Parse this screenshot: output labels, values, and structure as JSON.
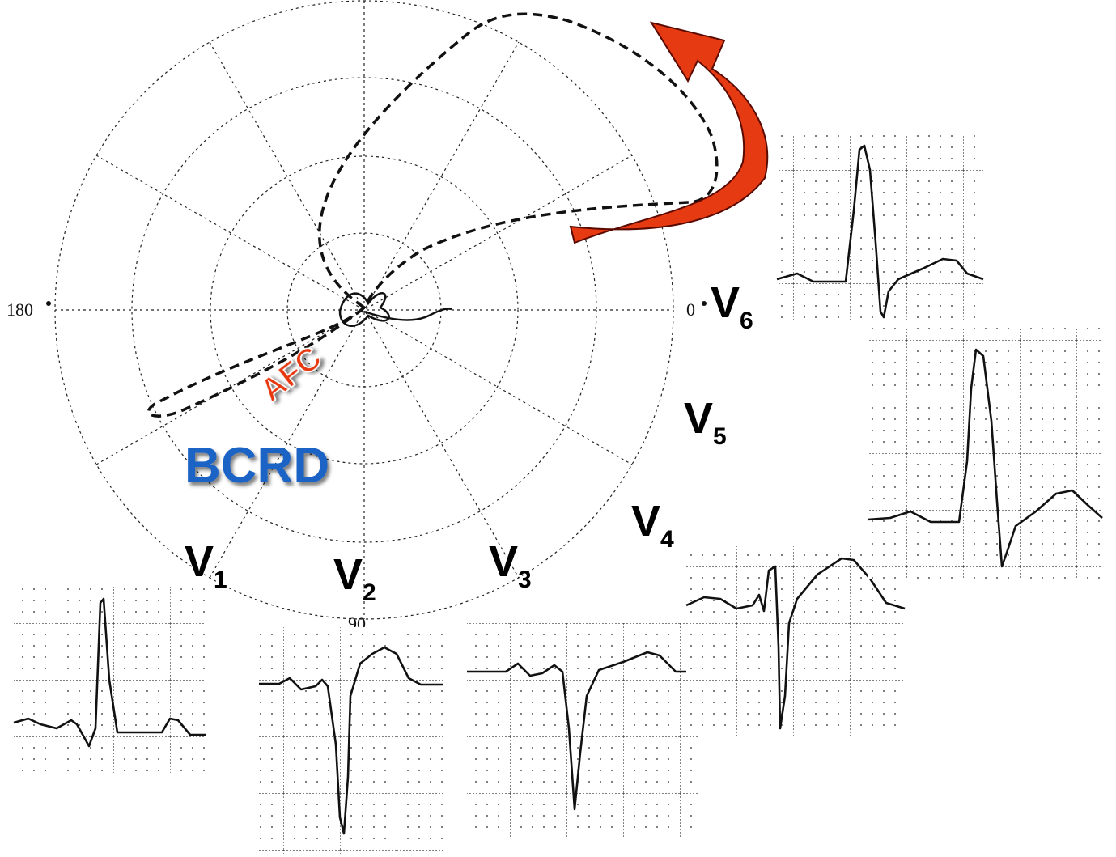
{
  "axis_labels": {
    "left": "180",
    "right": "0",
    "bottom": "90"
  },
  "annotations": {
    "afc": "AFC",
    "bcrd": "BCRD"
  },
  "leads": [
    {
      "letter": "V",
      "index": "1"
    },
    {
      "letter": "V",
      "index": "2"
    },
    {
      "letter": "V",
      "index": "3"
    },
    {
      "letter": "V",
      "index": "4"
    },
    {
      "letter": "V",
      "index": "5"
    },
    {
      "letter": "V",
      "index": "6"
    }
  ]
}
